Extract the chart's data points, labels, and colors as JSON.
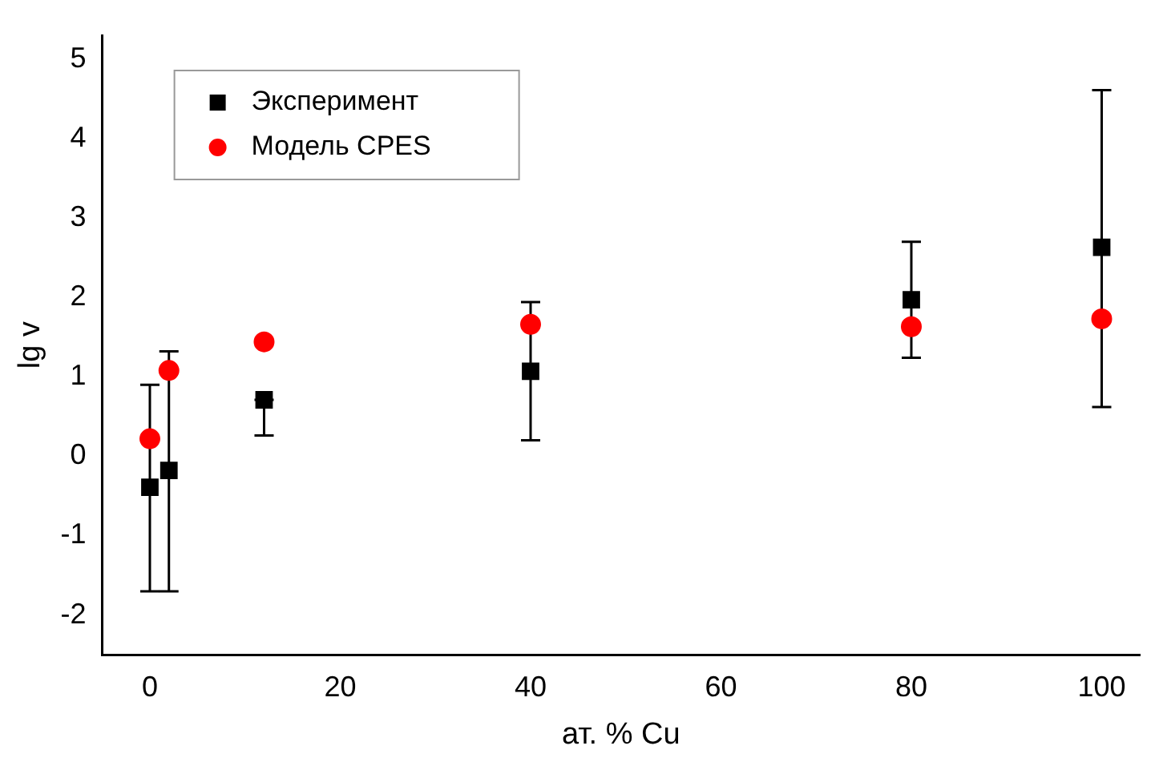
{
  "chart_data": {
    "type": "scatter",
    "xlabel": "ат. % Cu",
    "ylabel": "lg v",
    "xlim": [
      -5,
      104
    ],
    "ylim": [
      -2.5,
      5.3
    ],
    "xticks": [
      0,
      20,
      40,
      60,
      80,
      100
    ],
    "yticks": [
      -2,
      -1,
      0,
      1,
      2,
      3,
      4,
      5
    ],
    "grid": false,
    "legend": "top left",
    "series": [
      {
        "name": "Эксперимент",
        "color": "#000000",
        "marker": "square",
        "x": [
          0,
          2,
          12,
          40,
          80,
          100
        ],
        "values": [
          -0.39,
          -0.18,
          0.71,
          1.07,
          1.97,
          2.63
        ],
        "errors": [
          [
            -1.7,
            0.9
          ],
          [
            -1.7,
            1.32
          ],
          [
            0.26,
            0.71
          ],
          [
            0.2,
            1.94
          ],
          [
            1.24,
            2.7
          ],
          [
            0.62,
            4.61
          ]
        ]
      },
      {
        "name": "Модель CPES",
        "color": "#ff0000",
        "marker": "circle",
        "x": [
          0,
          2,
          12,
          40,
          80,
          100
        ],
        "values": [
          0.22,
          1.08,
          1.44,
          1.66,
          1.63,
          1.73
        ]
      }
    ]
  }
}
